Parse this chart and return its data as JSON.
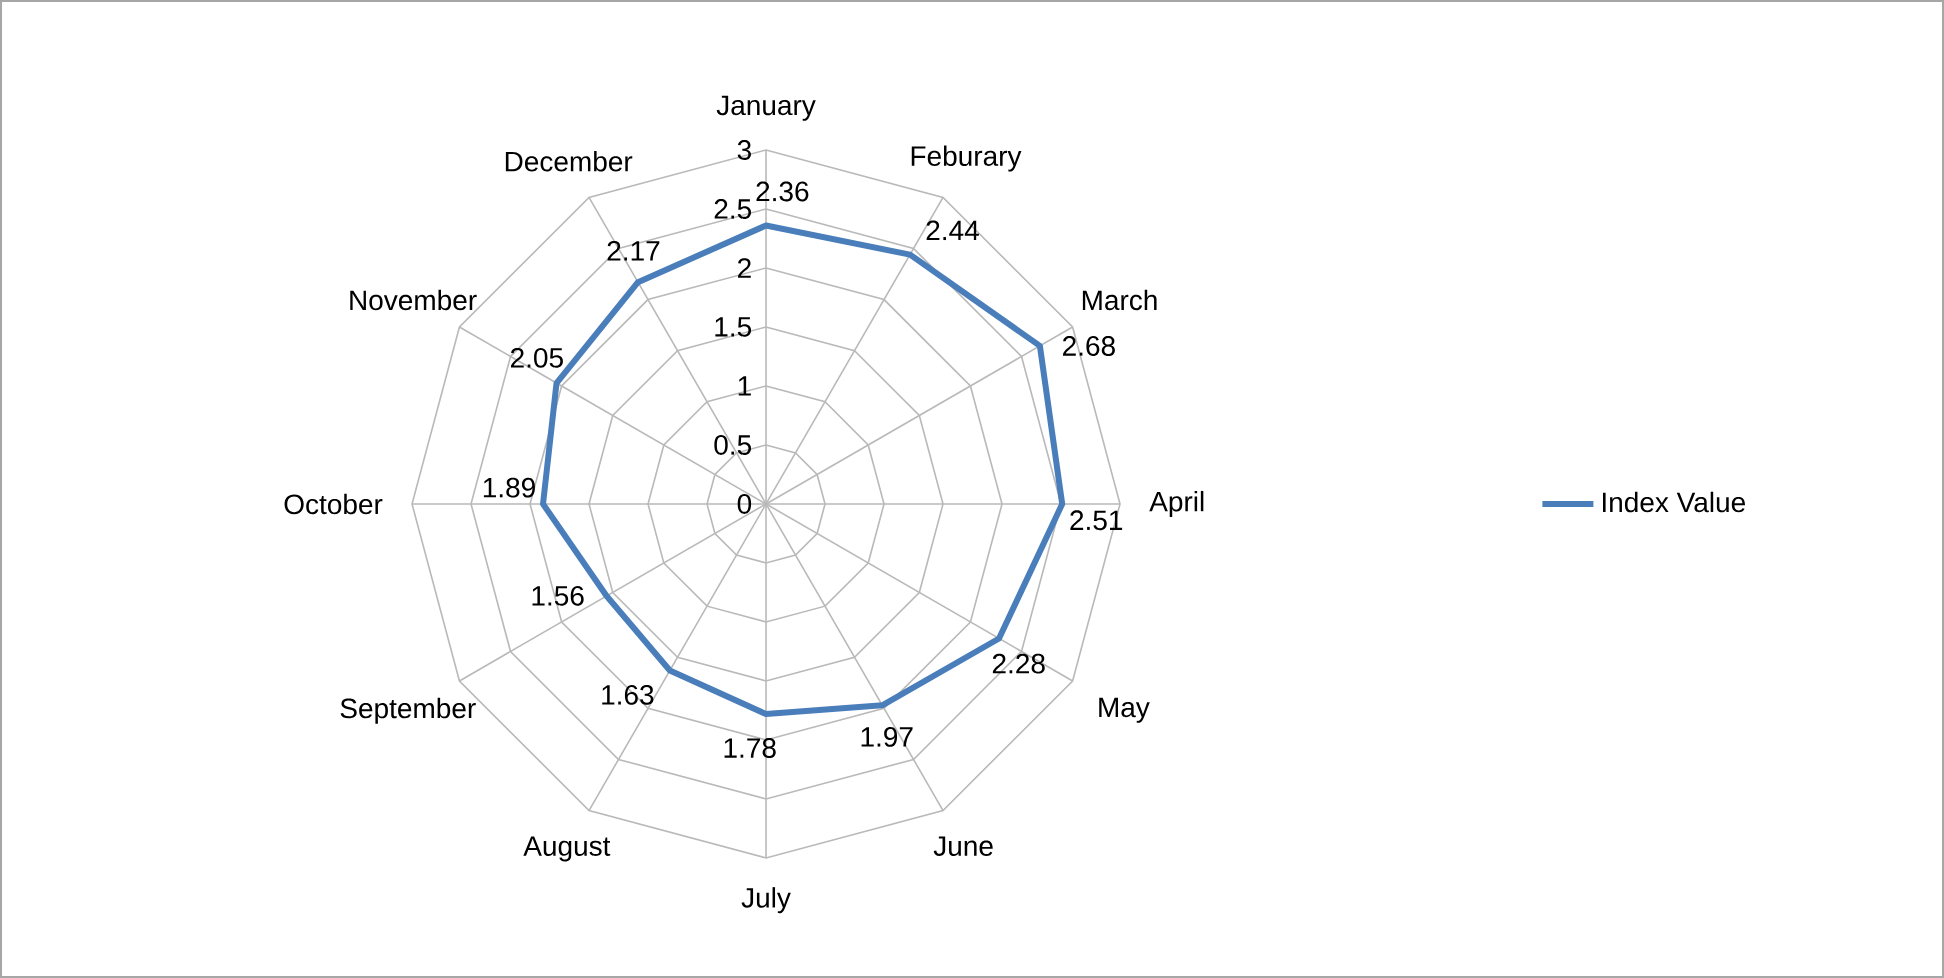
{
  "chart_data": {
    "type": "radar",
    "categories": [
      "January",
      "Feburary",
      "March",
      "April",
      "May",
      "June",
      "July",
      "August",
      "September",
      "October",
      "November",
      "December"
    ],
    "series": [
      {
        "name": "Index Value",
        "color": "#4a7ebb",
        "values": [
          2.36,
          2.44,
          2.68,
          2.51,
          2.28,
          1.97,
          1.78,
          1.63,
          1.56,
          1.89,
          2.05,
          2.17
        ]
      }
    ],
    "ylim": [
      0,
      3
    ],
    "yticks": [
      0,
      0.5,
      1,
      1.5,
      2,
      2.5,
      3
    ],
    "grid": true,
    "legend": "right",
    "data_labels": true
  }
}
